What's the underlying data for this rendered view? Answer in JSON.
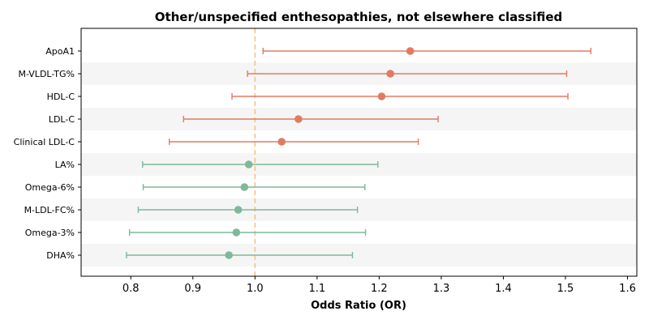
{
  "chart_data": {
    "type": "forest",
    "title": "Other/unspecified enthesopathies, not elsewhere classified",
    "xlabel": "Odds Ratio (OR)",
    "xlim": [
      0.72,
      1.615
    ],
    "xticks": [
      0.8,
      0.9,
      1.0,
      1.1,
      1.2,
      1.3,
      1.4,
      1.5,
      1.6
    ],
    "xtick_labels": [
      "0.8",
      "0.9",
      "1.0",
      "1.1",
      "1.2",
      "1.3",
      "1.4",
      "1.5",
      "1.6"
    ],
    "reference_line": 1.0,
    "colors": {
      "positive": "#e07b62",
      "negative": "#7fb89a",
      "reference": "#f5c57f",
      "stripe": "#f5f5f5"
    },
    "rows": [
      {
        "label": "ApoA1",
        "or": 1.25,
        "lo": 1.013,
        "hi": 1.541,
        "group": "positive"
      },
      {
        "label": "M-VLDL-TG%",
        "or": 1.218,
        "lo": 0.988,
        "hi": 1.502,
        "group": "positive"
      },
      {
        "label": "HDL-C",
        "or": 1.204,
        "lo": 0.963,
        "hi": 1.504,
        "group": "positive"
      },
      {
        "label": "LDL-C",
        "or": 1.07,
        "lo": 0.885,
        "hi": 1.295,
        "group": "positive"
      },
      {
        "label": "Clinical LDL-C",
        "or": 1.043,
        "lo": 0.862,
        "hi": 1.263,
        "group": "positive"
      },
      {
        "label": "LA%",
        "or": 0.99,
        "lo": 0.819,
        "hi": 1.198,
        "group": "negative"
      },
      {
        "label": "Omega-6%",
        "or": 0.983,
        "lo": 0.82,
        "hi": 1.177,
        "group": "negative"
      },
      {
        "label": "M-LDL-FC%",
        "or": 0.973,
        "lo": 0.812,
        "hi": 1.165,
        "group": "negative"
      },
      {
        "label": "Omega-3%",
        "or": 0.97,
        "lo": 0.798,
        "hi": 1.178,
        "group": "negative"
      },
      {
        "label": "DHA%",
        "or": 0.958,
        "lo": 0.793,
        "hi": 1.157,
        "group": "negative"
      }
    ]
  }
}
